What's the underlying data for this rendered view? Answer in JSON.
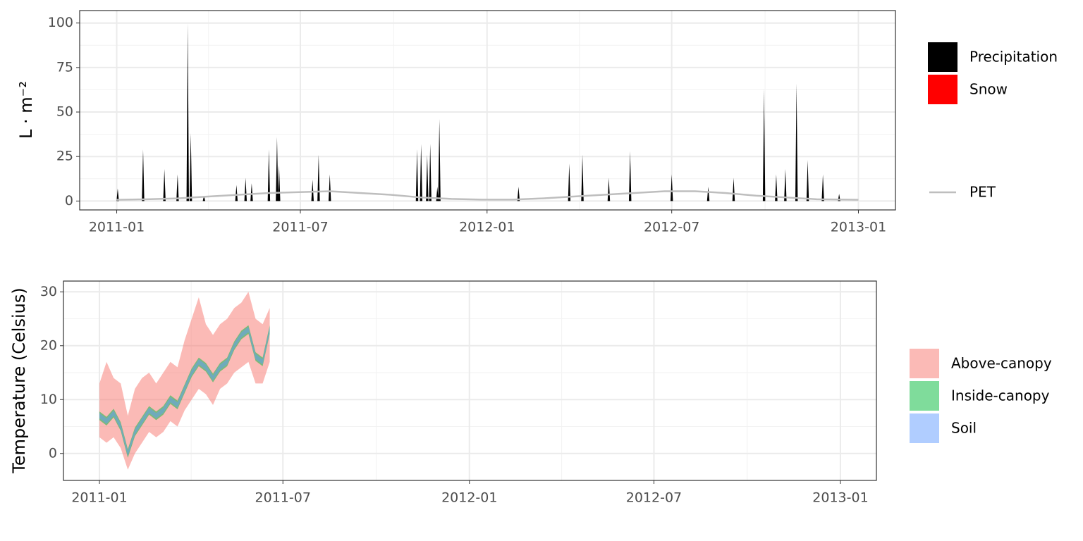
{
  "chart_data": [
    {
      "type": "area",
      "ylabel": "L · m⁻²",
      "xlim": [
        -36.5,
        767.5
      ],
      "xticks": [
        {
          "value": 0,
          "label": "2011-01"
        },
        {
          "value": 181,
          "label": "2011-07"
        },
        {
          "value": 365,
          "label": "2012-01"
        },
        {
          "value": 547,
          "label": "2012-07"
        },
        {
          "value": 731,
          "label": "2013-01"
        }
      ],
      "ylim": [
        -5,
        107
      ],
      "yticks": [
        0,
        25,
        50,
        75,
        100
      ],
      "grid": true,
      "series": [
        {
          "name": "Precipitation",
          "color": "#000000",
          "x": [
            1,
            26,
            47,
            60,
            70,
            73,
            86,
            118,
            127,
            133,
            150,
            158,
            160,
            193,
            199,
            210,
            296,
            300,
            306,
            309,
            316,
            318,
            396,
            446,
            459,
            485,
            506,
            547,
            583,
            608,
            638,
            650,
            659,
            670,
            681,
            696,
            712
          ],
          "values": [
            7,
            29,
            18,
            15,
            100,
            38,
            3,
            9,
            13,
            10,
            29,
            36,
            20,
            12,
            26,
            15,
            29,
            32,
            26,
            32,
            8,
            46,
            8,
            21,
            26,
            13,
            28,
            15,
            8,
            13,
            63,
            15,
            18,
            66,
            23,
            15,
            4
          ]
        },
        {
          "name": "Snow",
          "color": "#ff0000",
          "x": [],
          "values": []
        },
        {
          "name": "PET",
          "color": "#bebebe",
          "type": "line",
          "x": [
            0,
            30,
            60,
            90,
            120,
            150,
            180,
            210,
            240,
            270,
            300,
            330,
            360,
            390,
            420,
            450,
            480,
            510,
            540,
            570,
            600,
            630,
            660,
            690,
            720,
            731
          ],
          "values": [
            0.7,
            1,
            1.5,
            2.5,
            3.5,
            4.5,
            5,
            5.5,
            4.5,
            3.5,
            2,
            1.2,
            0.8,
            0.8,
            1.5,
            2.5,
            3.5,
            4.5,
            5.5,
            5.5,
            4.5,
            3,
            2,
            1,
            0.8,
            0.7
          ]
        }
      ]
    },
    {
      "type": "ribbon",
      "ylabel": "Temperature (Celsius)",
      "xlim": [
        -35.5,
        766.5
      ],
      "xticks": [
        {
          "value": 0,
          "label": "2011-01"
        },
        {
          "value": 181,
          "label": "2011-07"
        },
        {
          "value": 365,
          "label": "2012-01"
        },
        {
          "value": 547,
          "label": "2012-07"
        },
        {
          "value": 731,
          "label": "2013-01"
        }
      ],
      "ylim": [
        -5,
        32
      ],
      "yticks": [
        0,
        10,
        20,
        30
      ],
      "grid": true,
      "x": [
        0,
        7,
        14,
        21,
        28,
        35,
        42,
        49,
        56,
        63,
        70,
        77,
        84,
        91,
        98,
        105,
        112,
        119,
        126,
        133,
        140,
        147,
        154,
        161,
        168
      ],
      "series": [
        {
          "name": "Above-canopy",
          "color": "#F8766D",
          "min": [
            3,
            2,
            3,
            1,
            -3,
            0,
            2,
            4,
            3,
            4,
            6,
            5,
            8,
            10,
            12,
            11,
            9,
            12,
            13,
            15,
            16,
            17,
            13,
            13,
            17
          ],
          "max": [
            13,
            17,
            14,
            13,
            7,
            12,
            14,
            15,
            13,
            15,
            17,
            16,
            21,
            25,
            29,
            24,
            22,
            24,
            25,
            27,
            28,
            30,
            25,
            24,
            27
          ]
        },
        {
          "name": "Inside-canopy",
          "color": "#00BA38",
          "min": [
            6.2,
            5.2,
            6.7,
            4.2,
            -0.8,
            3.2,
            5.2,
            7.2,
            6.2,
            7.2,
            9.2,
            8.2,
            11.2,
            14.2,
            16.2,
            15.2,
            13.2,
            15.2,
            16.2,
            19.2,
            21.2,
            22.2,
            17.2,
            16.2,
            22.2
          ],
          "max": [
            7.8,
            6.8,
            8.3,
            5.8,
            0.8,
            4.8,
            6.8,
            8.8,
            7.8,
            8.8,
            10.8,
            9.8,
            12.8,
            15.8,
            17.8,
            16.8,
            14.8,
            16.8,
            17.8,
            20.8,
            22.8,
            23.8,
            18.8,
            17.8,
            23.8
          ]
        },
        {
          "name": "Soil",
          "color": "#619CFF",
          "min": [
            6.5,
            5.5,
            7,
            4.5,
            -0.5,
            3.5,
            5.5,
            7.5,
            6.5,
            7.5,
            9.5,
            8.5,
            11.5,
            14.5,
            16.5,
            15.5,
            13.5,
            15.5,
            16.5,
            19.5,
            21.5,
            22.5,
            17.5,
            16.5,
            22.5
          ],
          "max": [
            7.5,
            6.5,
            8,
            5.5,
            0.5,
            4.5,
            6.5,
            8.5,
            7.5,
            8.5,
            10.5,
            9.5,
            12.5,
            15.5,
            17.5,
            16.5,
            14.5,
            16.5,
            17.5,
            20.5,
            22.5,
            23.5,
            18.5,
            17.5,
            23.5
          ]
        }
      ]
    }
  ]
}
